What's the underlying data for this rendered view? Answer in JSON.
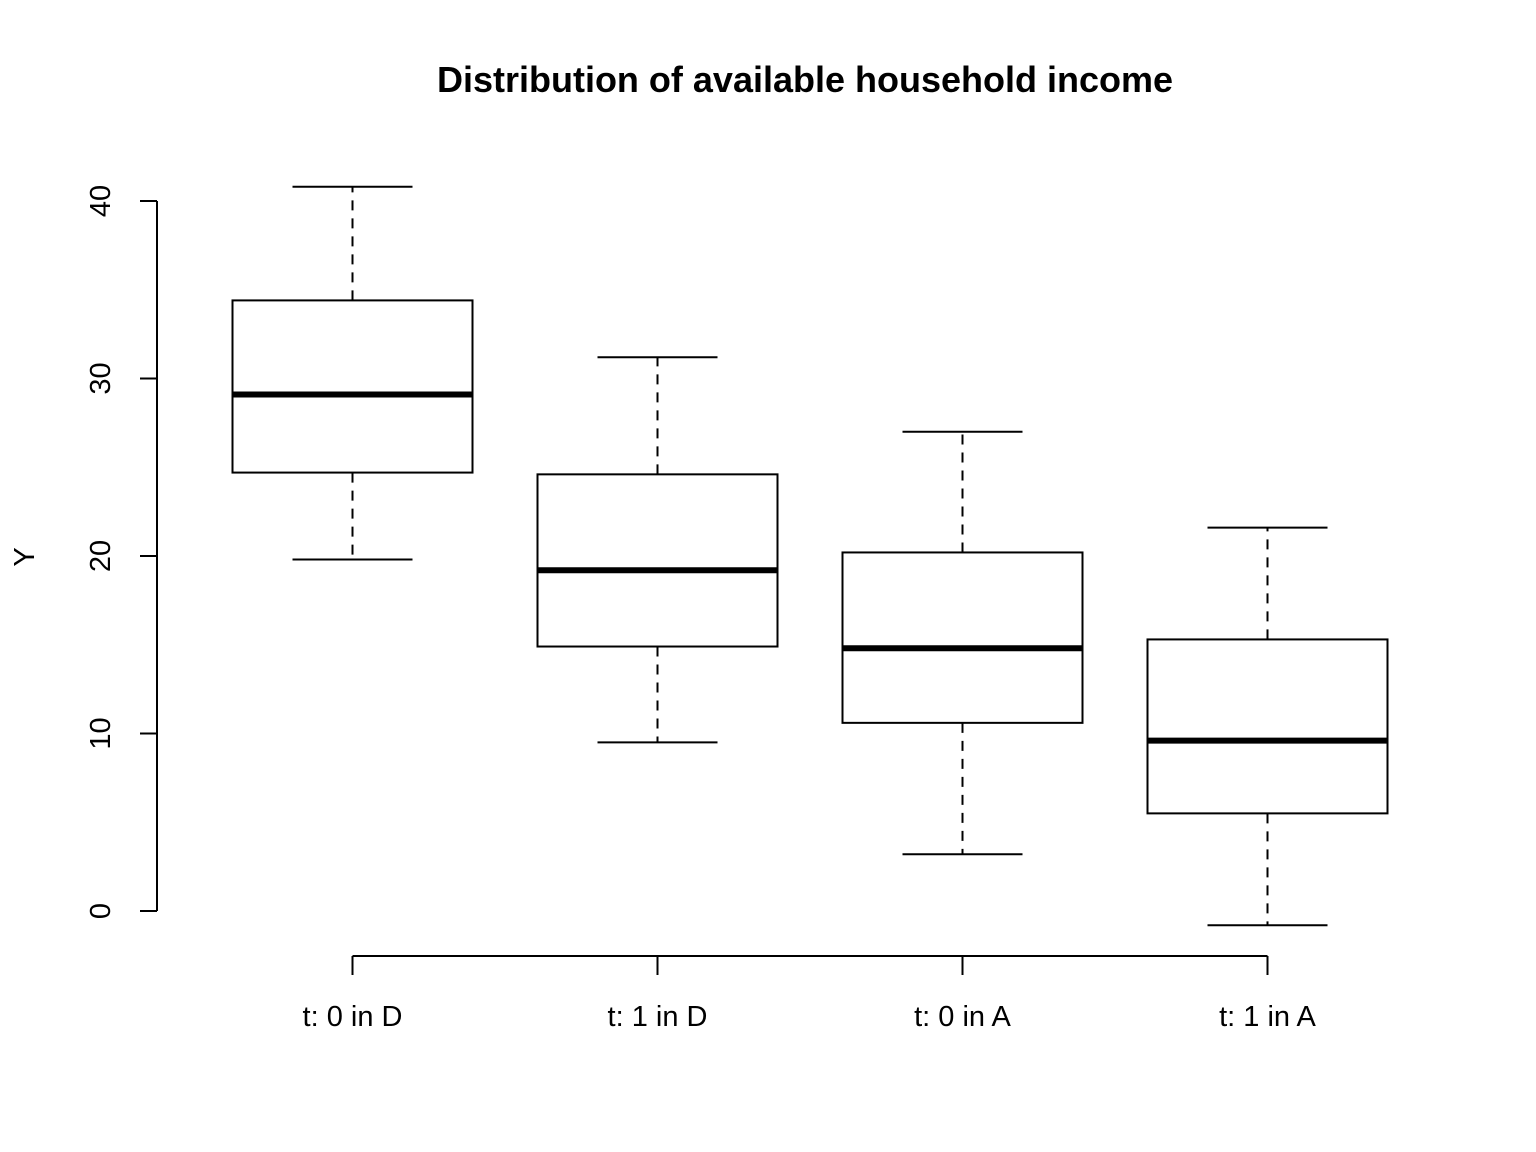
{
  "chart_data": {
    "type": "boxplot",
    "title": "Distribution of available household income",
    "xlabel": "",
    "ylabel": "Y",
    "ylim": [
      -2.5,
      43
    ],
    "y_ticks": [
      0,
      10,
      20,
      30,
      40
    ],
    "grid": false,
    "categories": [
      "t: 0 in D",
      "t: 1 in D",
      "t: 0 in A",
      "t: 1 in A"
    ],
    "boxes": [
      {
        "category": "t: 0 in D",
        "whisker_low": 19.8,
        "q1": 24.7,
        "median": 29.1,
        "q3": 34.4,
        "whisker_high": 40.8
      },
      {
        "category": "t: 1 in D",
        "whisker_low": 9.5,
        "q1": 14.9,
        "median": 19.2,
        "q3": 24.6,
        "whisker_high": 31.2
      },
      {
        "category": "t: 0 in A",
        "whisker_low": 3.2,
        "q1": 10.6,
        "median": 14.8,
        "q3": 20.2,
        "whisker_high": 27.0
      },
      {
        "category": "t: 1 in A",
        "whisker_low": -0.8,
        "q1": 5.5,
        "median": 9.6,
        "q3": 15.3,
        "whisker_high": 21.6
      }
    ]
  }
}
